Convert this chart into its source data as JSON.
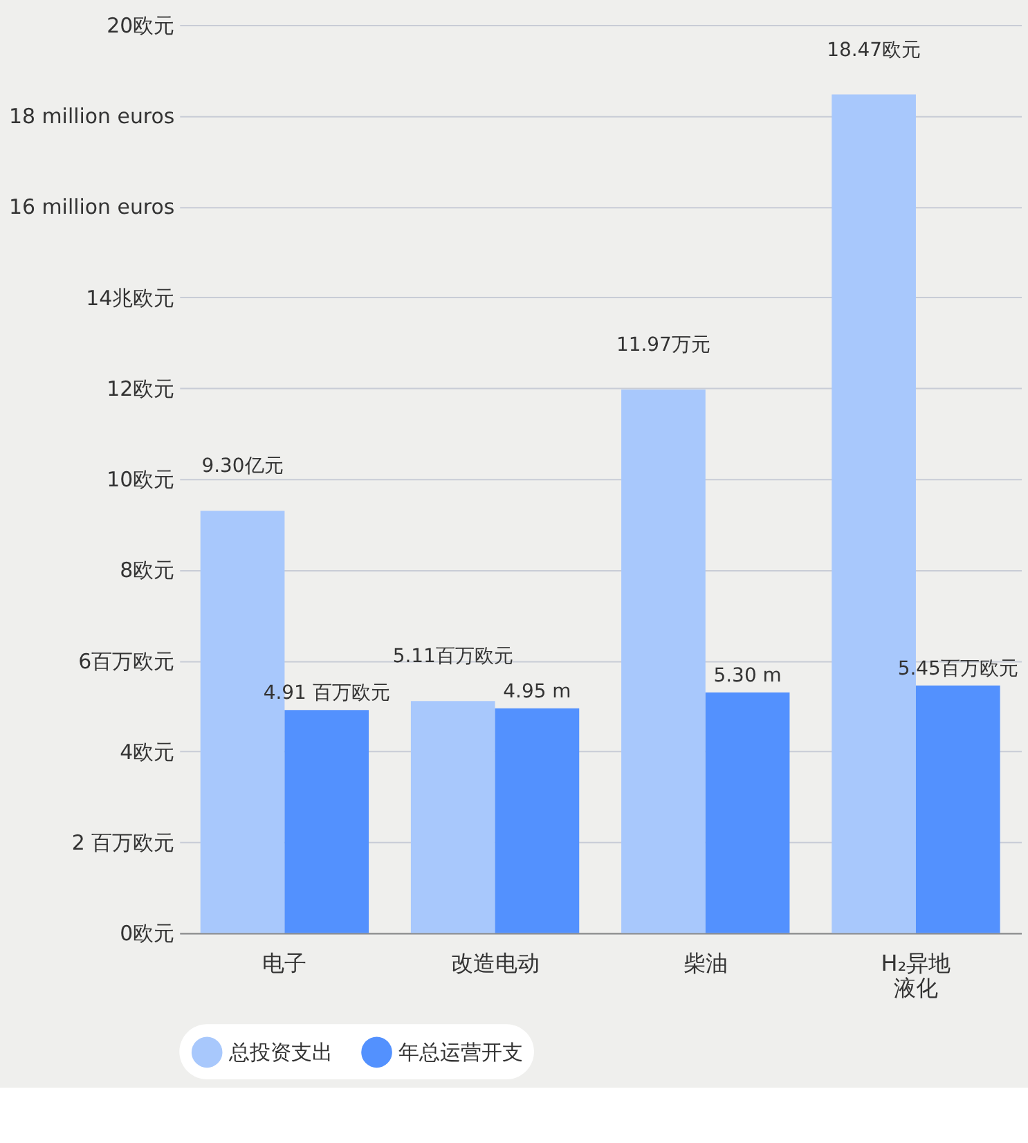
{
  "chart_data": {
    "type": "bar",
    "categories": [
      "电子",
      "改造电动",
      "柴油",
      "H₂异地液化"
    ],
    "series": [
      {
        "name": "总投资支出",
        "color": "#a8c8fc",
        "values": [
          9.3,
          5.11,
          11.97,
          18.47
        ],
        "value_labels": [
          "9.30亿元",
          "5.11百万欧元",
          "11.97万元",
          "18.47欧元"
        ]
      },
      {
        "name": "年总运营开支",
        "color": "#5391fe",
        "values": [
          4.91,
          4.95,
          5.3,
          5.45
        ],
        "value_labels": [
          "4.91 百万欧元",
          "4.95 m",
          "5.30 m",
          "5.45百万欧元"
        ]
      }
    ],
    "ylim": [
      0,
      20
    ],
    "yticks": [
      {
        "value": 0,
        "label": "0欧元"
      },
      {
        "value": 2,
        "label": "2 百万欧元"
      },
      {
        "value": 4,
        "label": "4欧元"
      },
      {
        "value": 6,
        "label": "6百万欧元"
      },
      {
        "value": 8,
        "label": "8欧元"
      },
      {
        "value": 10,
        "label": "10欧元"
      },
      {
        "value": 12,
        "label": "12欧元"
      },
      {
        "value": 14,
        "label": "14兆欧元"
      },
      {
        "value": 16,
        "label": "16 million euros"
      },
      {
        "value": 18,
        "label": "18 million euros"
      },
      {
        "value": 20,
        "label": "20欧元"
      }
    ],
    "grid": "y",
    "legend": "bottom"
  }
}
